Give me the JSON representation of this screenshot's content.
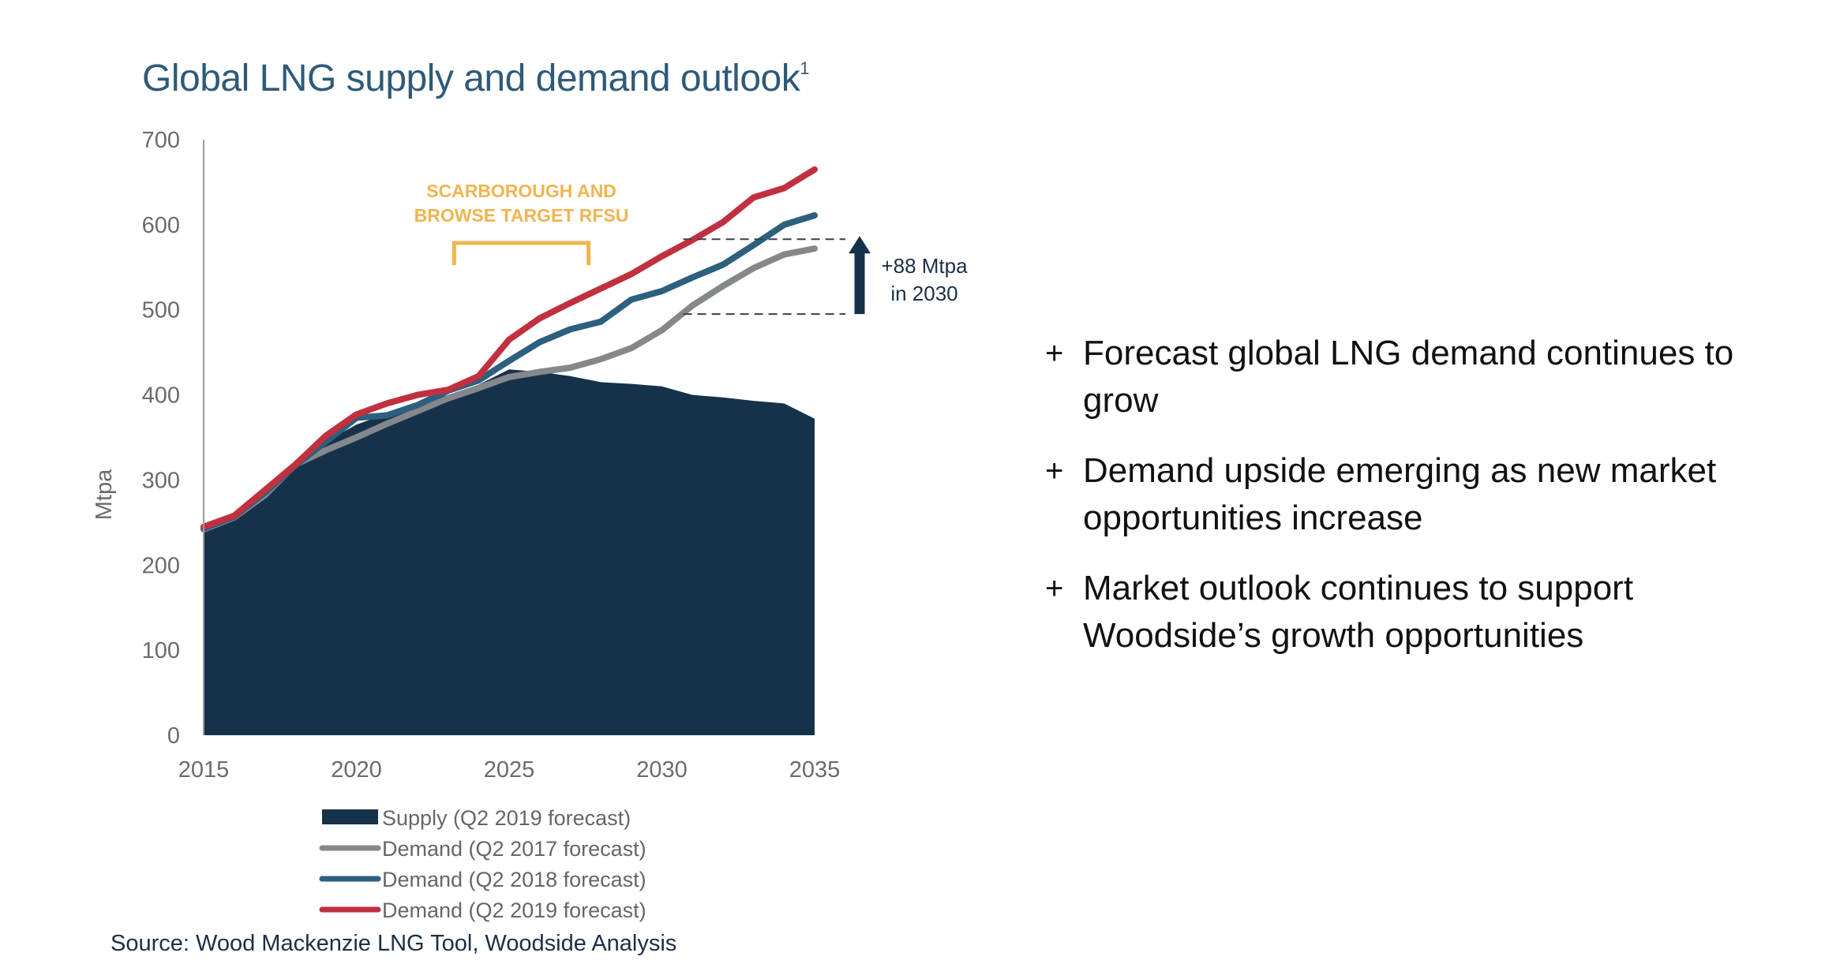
{
  "title": "Global LNG supply and demand outlook",
  "title_superscript": "1",
  "bullets": [
    {
      "marker": "+",
      "text": "Forecast global LNG demand continues to grow"
    },
    {
      "marker": "+",
      "text": "Demand upside emerging as new market opportunities increase"
    },
    {
      "marker": "+",
      "text": "Market outlook continues to support Woodside’s growth opportunities"
    }
  ],
  "source": "Source: Wood Mackenzie LNG Tool, Woodside Analysis",
  "colors": {
    "title": "#2e5a78",
    "supply": "#16324b",
    "demand_2017": "#85888b",
    "demand_2018": "#2d5f7f",
    "demand_2019": "#c1303f",
    "annotation": "#f0b450",
    "arrow": "#16324b"
  },
  "chart_data": {
    "type": "area",
    "title": "Global LNG supply and demand outlook",
    "xlabel": "",
    "ylabel": "Mtpa",
    "xlim": [
      2015,
      2035
    ],
    "ylim": [
      0,
      700
    ],
    "x_ticks": [
      2015,
      2020,
      2025,
      2030,
      2035
    ],
    "y_ticks": [
      0,
      100,
      200,
      300,
      400,
      500,
      600,
      700
    ],
    "grid": false,
    "legend_position": "bottom",
    "x": [
      2015,
      2016,
      2017,
      2018,
      2019,
      2020,
      2021,
      2022,
      2023,
      2024,
      2025,
      2026,
      2027,
      2028,
      2029,
      2030,
      2031,
      2032,
      2033,
      2034,
      2035
    ],
    "series": [
      {
        "name": "Supply (Q2 2019 forecast)",
        "type": "area",
        "color_key": "supply",
        "values": [
          240,
          256,
          282,
          315,
          345,
          365,
          378,
          390,
          400,
          412,
          430,
          427,
          422,
          415,
          413,
          410,
          400,
          397,
          393,
          390,
          372
        ]
      },
      {
        "name": "Demand (Q2 2017 forecast)",
        "type": "line",
        "color_key": "demand_2017",
        "values": [
          242,
          256,
          282,
          318,
          335,
          350,
          366,
          381,
          396,
          408,
          421,
          427,
          432,
          442,
          455,
          476,
          505,
          528,
          549,
          565,
          572
        ]
      },
      {
        "name": "Demand (Q2 2018 forecast)",
        "type": "line",
        "color_key": "demand_2018",
        "values": [
          243,
          257,
          285,
          317,
          345,
          373,
          376,
          388,
          405,
          417,
          440,
          462,
          477,
          486,
          512,
          522,
          538,
          553,
          576,
          600,
          611
        ]
      },
      {
        "name": "Demand (Q2 2019 forecast)",
        "type": "line",
        "color_key": "demand_2019",
        "values": [
          245,
          258,
          288,
          318,
          352,
          377,
          390,
          400,
          406,
          422,
          465,
          490,
          508,
          525,
          542,
          563,
          582,
          603,
          632,
          643,
          665
        ]
      }
    ],
    "annotations": [
      {
        "id": "rfsu",
        "lines": [
          "SCARBOROUGH AND",
          "BROWSE TARGET RFSU"
        ],
        "bracket_x": [
          2023.2,
          2027.6
        ]
      },
      {
        "id": "uplift",
        "lines": [
          "+88 Mtpa",
          "in 2030"
        ],
        "from_value": 495,
        "to_value": 583,
        "dash_x": [
          2030.7,
          2036
        ]
      }
    ]
  }
}
